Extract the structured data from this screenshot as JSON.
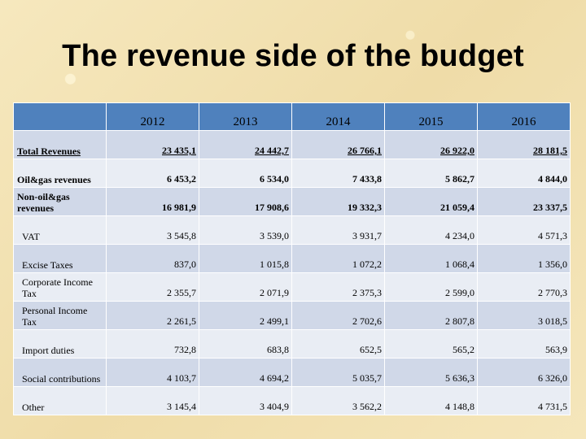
{
  "title": "The revenue side of the budget",
  "table": {
    "header": [
      "",
      "2012",
      "2013",
      "2014",
      "2015",
      "2016"
    ],
    "rows": [
      {
        "label": "Total Revenues",
        "values": [
          "23 435,1",
          "24 442,7",
          "26 766,1",
          "26 922,0",
          "28 181,5"
        ]
      },
      {
        "label": "Oil&gas revenues",
        "values": [
          "6 453,2",
          "6 534,0",
          "7 433,8",
          "5 862,7",
          "4 844,0"
        ]
      },
      {
        "label": "Non-oil&gas revenues",
        "values": [
          "16 981,9",
          "17 908,6",
          "19 332,3",
          "21 059,4",
          "23 337,5"
        ]
      },
      {
        "label": "VAT",
        "values": [
          "3 545,8",
          "3 539,0",
          "3 931,7",
          "4 234,0",
          "4 571,3"
        ]
      },
      {
        "label": "Excise Taxes",
        "values": [
          "837,0",
          "1 015,8",
          "1 072,2",
          "1 068,4",
          "1 356,0"
        ]
      },
      {
        "label": "Corporate Income Tax",
        "values": [
          "2 355,7",
          "2 071,9",
          "2 375,3",
          "2 599,0",
          "2 770,3"
        ]
      },
      {
        "label": "Personal Income Tax",
        "values": [
          "2 261,5",
          "2 499,1",
          "2 702,6",
          "2 807,8",
          "3 018,5"
        ]
      },
      {
        "label": "Import duties",
        "values": [
          "732,8",
          "683,8",
          "652,5",
          "565,2",
          "563,9"
        ]
      },
      {
        "label": "Social contributions",
        "values": [
          "4 103,7",
          "4 694,2",
          "5 035,7",
          "5 636,3",
          "6 326,0"
        ]
      },
      {
        "label": "Other",
        "values": [
          "3 145,4",
          "3 404,9",
          "3 562,2",
          "4 148,8",
          "4 731,5"
        ]
      }
    ]
  }
}
